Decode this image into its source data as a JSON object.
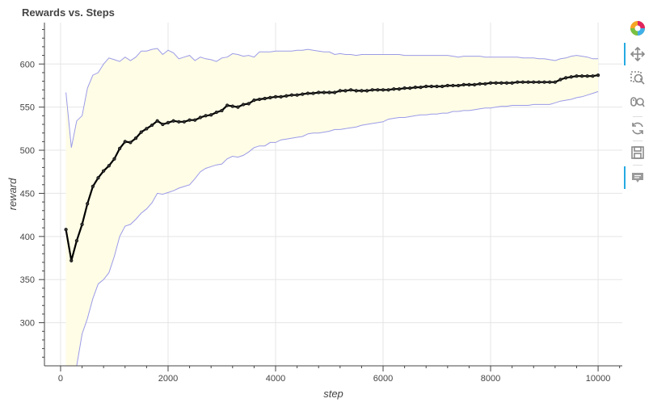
{
  "chart_data": {
    "type": "line",
    "title": "Rewards vs. Steps",
    "xlabel": "step",
    "ylabel": "reward",
    "xlim": [
      -300,
      10450
    ],
    "ylim": [
      250,
      648
    ],
    "xticks": [
      0,
      2000,
      4000,
      6000,
      8000,
      10000
    ],
    "yticks": [
      300,
      350,
      400,
      450,
      500,
      550,
      600
    ],
    "grid": true,
    "legend": "none",
    "colors": {
      "mean_line": "#000000",
      "band_fill": "#fffde6",
      "band_edge": "#9b9be8",
      "grid": "#e5e5e5",
      "axis": "#444444"
    },
    "series": [
      {
        "role": "mean",
        "x": [
          100,
          200,
          300,
          400,
          500,
          600,
          700,
          800,
          900,
          1000,
          1100,
          1200,
          1300,
          1400,
          1500,
          1600,
          1700,
          1800,
          1900,
          2000,
          2100,
          2200,
          2300,
          2400,
          2500,
          2600,
          2700,
          2800,
          2900,
          3000,
          3100,
          3200,
          3300,
          3400,
          3500,
          3600,
          3700,
          3800,
          3900,
          4000,
          4100,
          4200,
          4300,
          4400,
          4500,
          4600,
          4700,
          4800,
          4900,
          5000,
          5100,
          5200,
          5300,
          5400,
          5500,
          5600,
          5700,
          5800,
          5900,
          6000,
          6100,
          6200,
          6300,
          6400,
          6500,
          6600,
          6700,
          6800,
          6900,
          7000,
          7100,
          7200,
          7300,
          7400,
          7500,
          7600,
          7700,
          7800,
          7900,
          8000,
          8100,
          8200,
          8300,
          8400,
          8500,
          8600,
          8700,
          8800,
          8900,
          9000,
          9100,
          9200,
          9300,
          9400,
          9500,
          9600,
          9700,
          9800,
          9900,
          10000
        ],
        "y": [
          408,
          372,
          395,
          414,
          438,
          458,
          468,
          476,
          482,
          490,
          502,
          510,
          509,
          514,
          521,
          525,
          529,
          534,
          530,
          532,
          534,
          533,
          533,
          535,
          535,
          538,
          540,
          541,
          544,
          546,
          552,
          551,
          550,
          553,
          554,
          558,
          559,
          560,
          561,
          562,
          562,
          563,
          564,
          564,
          565,
          566,
          566,
          567,
          567,
          567,
          567,
          569,
          569,
          570,
          569,
          569,
          569,
          570,
          570,
          570,
          570,
          571,
          571,
          572,
          572,
          573,
          573,
          574,
          574,
          574,
          574,
          575,
          575,
          575,
          576,
          576,
          576,
          577,
          577,
          578,
          578,
          578,
          578,
          578,
          579,
          579,
          579,
          579,
          579,
          579,
          579,
          579,
          582,
          584,
          585,
          586,
          586,
          586,
          586,
          587
        ]
      },
      {
        "role": "upper",
        "x": [
          100,
          200,
          300,
          400,
          500,
          600,
          700,
          800,
          900,
          1000,
          1100,
          1200,
          1300,
          1400,
          1500,
          1600,
          1700,
          1800,
          1900,
          2000,
          2100,
          2200,
          2300,
          2400,
          2500,
          2600,
          2700,
          2800,
          2900,
          3000,
          3100,
          3200,
          3300,
          3400,
          3500,
          3600,
          3700,
          3800,
          3900,
          4000,
          4100,
          4200,
          4300,
          4400,
          4500,
          4600,
          4700,
          4800,
          4900,
          5000,
          5100,
          5200,
          5300,
          5400,
          5500,
          5600,
          5700,
          5800,
          5900,
          6000,
          6100,
          6200,
          6300,
          6400,
          6500,
          6600,
          6700,
          6800,
          6900,
          7000,
          7100,
          7200,
          7300,
          7400,
          7500,
          7600,
          7700,
          7800,
          7900,
          8000,
          8100,
          8200,
          8300,
          8400,
          8500,
          8600,
          8700,
          8800,
          8900,
          9000,
          9100,
          9200,
          9300,
          9400,
          9500,
          9600,
          9700,
          9800,
          9900,
          10000
        ],
        "y": [
          567,
          503,
          534,
          540,
          572,
          587,
          590,
          600,
          607,
          605,
          603,
          608,
          604,
          608,
          615,
          615,
          617,
          618,
          611,
          616,
          613,
          606,
          608,
          610,
          604,
          608,
          606,
          605,
          603,
          607,
          608,
          612,
          611,
          609,
          610,
          608,
          614,
          614,
          614,
          615,
          615,
          615,
          615,
          616,
          616,
          617,
          616,
          615,
          614,
          614,
          611,
          612,
          611,
          611,
          610,
          611,
          611,
          611,
          611,
          611,
          611,
          611,
          611,
          610,
          610,
          610,
          610,
          610,
          610,
          610,
          610,
          610,
          609,
          608,
          609,
          609,
          609,
          609,
          608,
          608,
          608,
          608,
          608,
          608,
          608,
          607,
          607,
          607,
          606,
          606,
          605,
          604,
          606,
          607,
          609,
          610,
          609,
          608,
          606,
          606
        ]
      },
      {
        "role": "lower",
        "x": [
          100,
          200,
          300,
          400,
          500,
          600,
          700,
          800,
          900,
          1000,
          1100,
          1200,
          1300,
          1400,
          1500,
          1600,
          1700,
          1800,
          1900,
          2000,
          2100,
          2200,
          2300,
          2400,
          2500,
          2600,
          2700,
          2800,
          2900,
          3000,
          3100,
          3200,
          3300,
          3400,
          3500,
          3600,
          3700,
          3800,
          3900,
          4000,
          4100,
          4200,
          4300,
          4400,
          4500,
          4600,
          4700,
          4800,
          4900,
          5000,
          5100,
          5200,
          5300,
          5400,
          5500,
          5600,
          5700,
          5800,
          5900,
          6000,
          6100,
          6200,
          6300,
          6400,
          6500,
          6600,
          6700,
          6800,
          6900,
          7000,
          7100,
          7200,
          7300,
          7400,
          7500,
          7600,
          7700,
          7800,
          7900,
          8000,
          8100,
          8200,
          8300,
          8400,
          8500,
          8600,
          8700,
          8800,
          8900,
          9000,
          9100,
          9200,
          9300,
          9400,
          9500,
          9600,
          9700,
          9800,
          9900,
          10000
        ],
        "y": [
          249,
          230,
          250,
          287,
          305,
          328,
          345,
          350,
          358,
          377,
          400,
          412,
          414,
          420,
          427,
          432,
          439,
          450,
          449,
          451,
          453,
          456,
          458,
          460,
          467,
          475,
          479,
          481,
          483,
          484,
          490,
          493,
          492,
          494,
          498,
          503,
          505,
          505,
          509,
          509,
          512,
          513,
          514,
          515,
          516,
          519,
          520,
          520,
          521,
          522,
          524,
          524,
          525,
          526,
          527,
          529,
          530,
          531,
          532,
          533,
          536,
          537,
          538,
          538,
          539,
          540,
          541,
          541,
          542,
          542,
          543,
          543,
          545,
          545,
          546,
          546,
          547,
          548,
          549,
          549,
          550,
          551,
          551,
          552,
          552,
          552,
          552,
          553,
          553,
          553,
          553,
          555,
          557,
          558,
          559,
          561,
          562,
          564,
          566,
          568
        ]
      }
    ]
  },
  "toolbar": {
    "tools": [
      {
        "name": "bokeh-logo-icon",
        "active": false,
        "interactable": true
      },
      {
        "name": "pan-icon",
        "active": true,
        "interactable": true
      },
      {
        "name": "box-zoom-icon",
        "active": false,
        "interactable": true
      },
      {
        "name": "wheel-zoom-icon",
        "active": false,
        "interactable": true
      },
      {
        "name": "reset-icon",
        "active": false,
        "interactable": true
      },
      {
        "name": "save-icon",
        "active": false,
        "interactable": true
      },
      {
        "name": "hover-icon",
        "active": true,
        "interactable": true
      }
    ]
  }
}
